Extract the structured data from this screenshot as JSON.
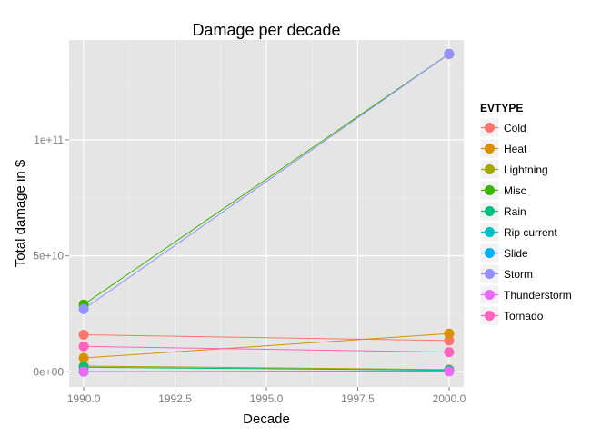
{
  "chart_data": {
    "type": "line",
    "title": "Damage per decade",
    "xlabel": "Decade",
    "ylabel": "Total damage in $",
    "x": [
      1990,
      2000
    ],
    "xlim": [
      1989.6,
      2000.4
    ],
    "ylim": [
      -6500000000,
      143000000000
    ],
    "x_ticks": [
      {
        "value": 1990.0,
        "label": "1990.0"
      },
      {
        "value": 1992.5,
        "label": "1992.5"
      },
      {
        "value": 1995.0,
        "label": "1995.0"
      },
      {
        "value": 1997.5,
        "label": "1997.5"
      },
      {
        "value": 2000.0,
        "label": "2000.0"
      }
    ],
    "y_ticks": [
      {
        "value": 0,
        "label": "0e+00"
      },
      {
        "value": 50000000000,
        "label": "5e+10"
      },
      {
        "value": 100000000000,
        "label": "1e+11"
      }
    ],
    "grid": true,
    "legend": {
      "title": "EVTYPE",
      "position": "right"
    },
    "series": [
      {
        "name": "Cold",
        "color": "#F8766D",
        "values": [
          16000000000,
          13500000000
        ]
      },
      {
        "name": "Heat",
        "color": "#D89000",
        "values": [
          6000000000,
          16500000000
        ]
      },
      {
        "name": "Lightning",
        "color": "#A3A500",
        "values": [
          2500000000,
          1000000000
        ]
      },
      {
        "name": "Misc",
        "color": "#39B600",
        "values": [
          29000000000,
          137000000000
        ]
      },
      {
        "name": "Rain",
        "color": "#00BF7D",
        "values": [
          2000000000,
          700000000
        ]
      },
      {
        "name": "Rip current",
        "color": "#00BFC4",
        "values": [
          100000000,
          400000000
        ]
      },
      {
        "name": "Slide",
        "color": "#00B0F6",
        "values": [
          100000000,
          400000000
        ]
      },
      {
        "name": "Storm",
        "color": "#9590FF",
        "values": [
          27000000000,
          137000000000
        ]
      },
      {
        "name": "Thunderstorm",
        "color": "#E76BF3",
        "values": [
          100000000,
          200000000
        ]
      },
      {
        "name": "Tornado",
        "color": "#FF62BC",
        "values": [
          11000000000,
          8500000000
        ]
      }
    ]
  }
}
